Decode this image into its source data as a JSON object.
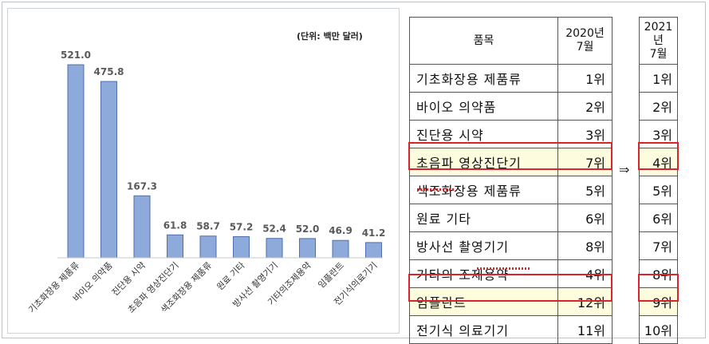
{
  "chart_data": {
    "type": "bar",
    "unit_note": "(단위: 백만 달러)",
    "categories": [
      "기초화장용 제품류",
      "바이오 의약품",
      "진단용 시약",
      "초음파 영상진단기",
      "색조화장용 제품류",
      "원료 기타",
      "방사선 촬영기기",
      "기타의조제용약",
      "임플란트",
      "전기식의료기기"
    ],
    "values": [
      521.0,
      475.8,
      167.3,
      61.8,
      58.7,
      57.2,
      52.4,
      52.0,
      46.9,
      41.2
    ],
    "value_labels": [
      "521.0",
      "475.8",
      "167.3",
      "61.8",
      "58.7",
      "57.2",
      "52.4",
      "52.0",
      "46.9",
      "41.2"
    ],
    "ylim": [
      0,
      560
    ],
    "colors": {
      "bar_fill": "#8eaadb",
      "bar_stroke": "#4f6fae"
    }
  },
  "table": {
    "header_item": "품목",
    "header_2020": "2020년\n7월",
    "header_2021": "2021년\n7월",
    "rows": [
      {
        "item": "기초화장용 제품류",
        "r2020": "1위",
        "r2021": "1위",
        "highlight": false
      },
      {
        "item": "바이오 의약품",
        "r2020": "2위",
        "r2021": "2위",
        "highlight": false
      },
      {
        "item": "진단용 시약",
        "r2020": "3위",
        "r2021": "3위",
        "highlight": false
      },
      {
        "item": "초음파 영상진단기",
        "r2020": "7위",
        "r2021": "4위",
        "highlight": true
      },
      {
        "item": "색조화장용 제품류",
        "r2020": "5위",
        "r2021": "5위",
        "highlight": false
      },
      {
        "item": "원료 기타",
        "r2020": "6위",
        "r2021": "6위",
        "highlight": false
      },
      {
        "item": "방사선 촬영기기",
        "r2020": "8위",
        "r2021": "7위",
        "highlight": false
      },
      {
        "item": "기타의 조제용약",
        "r2020": "4위",
        "r2021": "8위",
        "highlight": false
      },
      {
        "item": "임플란트",
        "r2020": "12위",
        "r2021": "9위",
        "highlight": true
      },
      {
        "item": "전기식 의료기기",
        "r2020": "11위",
        "r2021": "10위",
        "highlight": false
      }
    ],
    "arrow": "⇒",
    "highlight_color": "#d9242b"
  }
}
